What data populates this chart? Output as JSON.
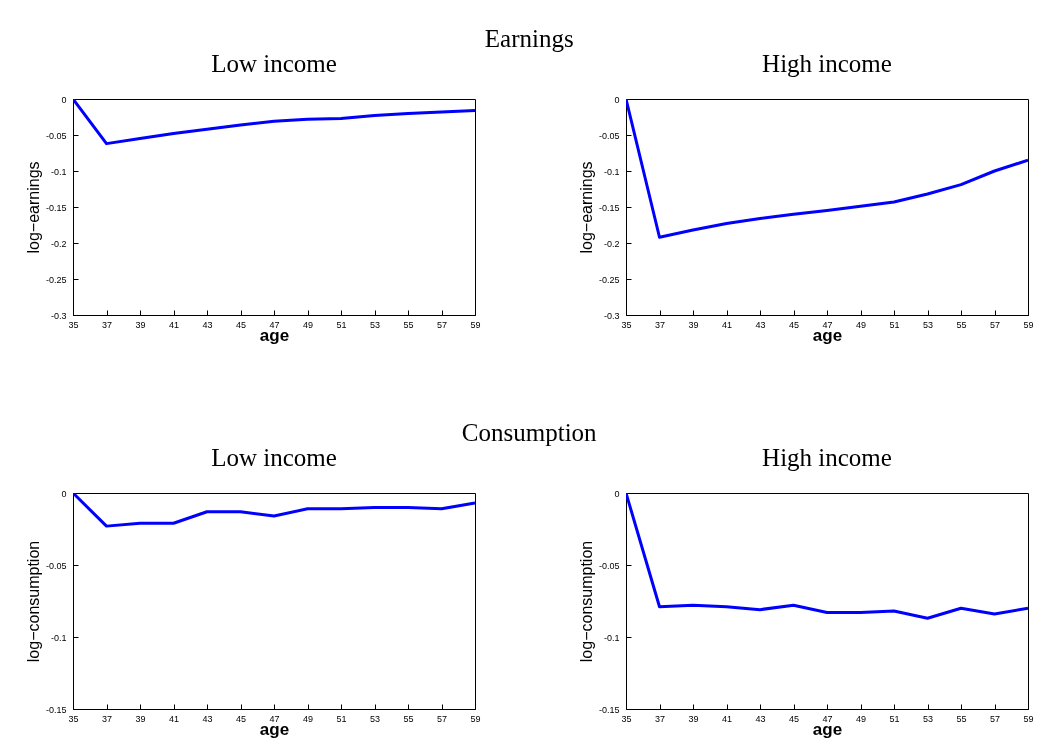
{
  "chart_data": [
    {
      "type": "line",
      "title": "Low income",
      "annotations": [
        "Earnings"
      ],
      "xlabel": "age",
      "ylabel": "log−earnings",
      "x": [
        35,
        37,
        39,
        41,
        43,
        45,
        47,
        49,
        51,
        53,
        55,
        57,
        59
      ],
      "xlim": [
        35,
        59
      ],
      "xticks": [
        35,
        37,
        39,
        41,
        43,
        45,
        47,
        49,
        51,
        53,
        55,
        57,
        59
      ],
      "ylim": [
        -0.3,
        0
      ],
      "yticks": [
        -0.3,
        -0.25,
        -0.2,
        -0.15,
        -0.1,
        -0.05,
        0
      ],
      "series": [
        {
          "color": "#0000ff",
          "values": [
            0,
            -0.062,
            -0.055,
            -0.048,
            -0.042,
            -0.036,
            -0.031,
            -0.028,
            -0.027,
            -0.023,
            -0.02,
            -0.018,
            -0.016
          ]
        }
      ]
    },
    {
      "type": "line",
      "title": "High income",
      "xlabel": "age",
      "ylabel": "log−earnings",
      "x": [
        35,
        37,
        39,
        41,
        43,
        45,
        47,
        49,
        51,
        53,
        55,
        57,
        59
      ],
      "xlim": [
        35,
        59
      ],
      "xticks": [
        35,
        37,
        39,
        41,
        43,
        45,
        47,
        49,
        51,
        53,
        55,
        57,
        59
      ],
      "ylim": [
        -0.3,
        0
      ],
      "yticks": [
        -0.3,
        -0.25,
        -0.2,
        -0.15,
        -0.1,
        -0.05,
        0
      ],
      "series": [
        {
          "color": "#0000ff",
          "values": [
            0,
            -0.192,
            -0.182,
            -0.173,
            -0.166,
            -0.16,
            -0.155,
            -0.149,
            -0.143,
            -0.132,
            -0.119,
            -0.1,
            -0.085
          ]
        }
      ]
    },
    {
      "type": "line",
      "title": "Low income",
      "annotations": [
        "Consumption"
      ],
      "xlabel": "age",
      "ylabel": "log−consumption",
      "x": [
        35,
        37,
        39,
        41,
        43,
        45,
        47,
        49,
        51,
        53,
        55,
        57,
        59
      ],
      "xlim": [
        35,
        59
      ],
      "xticks": [
        35,
        37,
        39,
        41,
        43,
        45,
        47,
        49,
        51,
        53,
        55,
        57,
        59
      ],
      "ylim": [
        -0.15,
        0
      ],
      "yticks": [
        -0.15,
        -0.1,
        -0.05,
        0
      ],
      "series": [
        {
          "color": "#0000ff",
          "values": [
            0,
            -0.023,
            -0.021,
            -0.021,
            -0.013,
            -0.013,
            -0.016,
            -0.011,
            -0.011,
            -0.01,
            -0.01,
            -0.011,
            -0.007
          ]
        }
      ]
    },
    {
      "type": "line",
      "title": "High income",
      "xlabel": "age",
      "ylabel": "log−consumption",
      "x": [
        35,
        37,
        39,
        41,
        43,
        45,
        47,
        49,
        51,
        53,
        55,
        57,
        59
      ],
      "xlim": [
        35,
        59
      ],
      "xticks": [
        35,
        37,
        39,
        41,
        43,
        45,
        47,
        49,
        51,
        53,
        55,
        57,
        59
      ],
      "ylim": [
        -0.15,
        0
      ],
      "yticks": [
        -0.15,
        -0.1,
        -0.05,
        0
      ],
      "series": [
        {
          "color": "#0000ff",
          "values": [
            0,
            -0.079,
            -0.078,
            -0.079,
            -0.081,
            -0.078,
            -0.083,
            -0.083,
            -0.082,
            -0.087,
            -0.08,
            -0.084,
            -0.08
          ]
        }
      ]
    }
  ]
}
